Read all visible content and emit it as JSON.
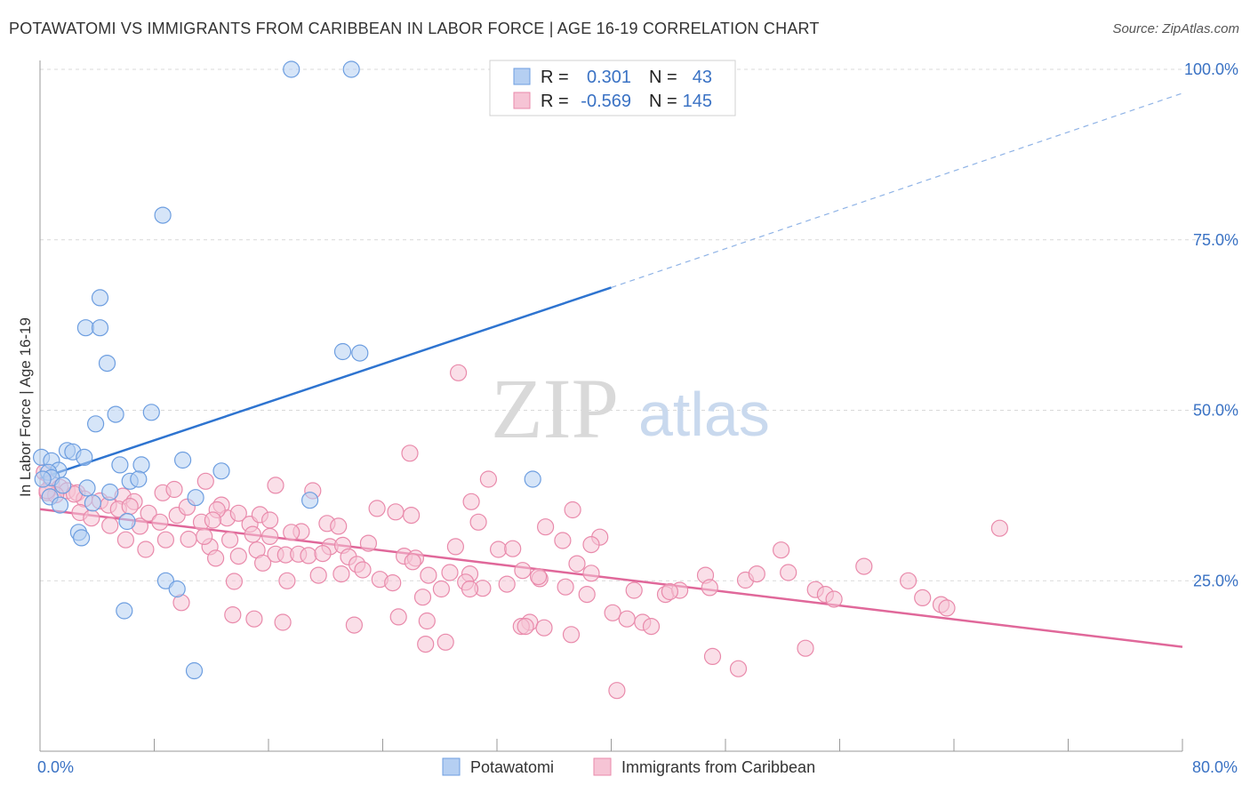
{
  "title": "POTAWATOMI VS IMMIGRANTS FROM CARIBBEAN IN LABOR FORCE | AGE 16-19 CORRELATION CHART",
  "source": "Source: ZipAtlas.com",
  "watermark": {
    "zip": "ZIP",
    "atlas": "atlas"
  },
  "colors": {
    "blue": "#6d9ee0",
    "blue_fill": "#b5cff2",
    "blue_line": "#2e74d0",
    "pink": "#e98aab",
    "pink_fill": "#f6c4d5",
    "pink_line": "#e0689a",
    "grid": "#d9d9d9",
    "axis_text": "#3a72c4"
  },
  "stats": {
    "r_label": "R =",
    "n_label": "N =",
    "rows": [
      {
        "series": "blue",
        "r": "0.301",
        "n": "43"
      },
      {
        "series": "pink",
        "r": "-0.569",
        "n": "145"
      }
    ]
  },
  "chart_data": {
    "type": "scatter",
    "title": "POTAWATOMI VS IMMIGRANTS FROM CARIBBEAN IN LABOR FORCE | AGE 16-19 CORRELATION CHART",
    "xlabel": "",
    "ylabel": "In Labor Force | Age 16-19",
    "xlim": [
      0,
      80
    ],
    "ylim": [
      0,
      100
    ],
    "x_tick_labels": [
      "0.0%",
      "80.0%"
    ],
    "y_ticks": [
      25,
      50,
      75,
      100
    ],
    "y_tick_labels": [
      "25.0%",
      "50.0%",
      "75.0%",
      "100.0%"
    ],
    "grid": true,
    "legend_position": "bottom",
    "series": [
      {
        "name": "Potawatomi",
        "color": "#6d9ee0",
        "r": 0.301,
        "n": 43,
        "trend": {
          "x0": 0,
          "y0": 40.0,
          "x1": 40,
          "y1": 68.0,
          "dashed_to_x": 80,
          "dashed_to_y": 96.5
        },
        "points": [
          [
            17.6,
            100
          ],
          [
            21.8,
            100
          ],
          [
            8.6,
            78.6
          ],
          [
            4.2,
            66.5
          ],
          [
            3.2,
            62.1
          ],
          [
            4.2,
            62.1
          ],
          [
            4.7,
            56.9
          ],
          [
            21.2,
            58.6
          ],
          [
            22.4,
            58.4
          ],
          [
            7.8,
            49.7
          ],
          [
            5.3,
            49.4
          ],
          [
            3.9,
            48.0
          ],
          [
            1.9,
            44.1
          ],
          [
            2.3,
            43.9
          ],
          [
            3.1,
            43.1
          ],
          [
            0.1,
            43.1
          ],
          [
            0.8,
            42.6
          ],
          [
            10.0,
            42.7
          ],
          [
            5.6,
            42.0
          ],
          [
            7.1,
            42.0
          ],
          [
            12.7,
            41.1
          ],
          [
            1.3,
            41.2
          ],
          [
            0.6,
            40.9
          ],
          [
            0.8,
            40.1
          ],
          [
            0.2,
            39.9
          ],
          [
            1.6,
            39.0
          ],
          [
            3.3,
            38.6
          ],
          [
            4.9,
            38.0
          ],
          [
            6.3,
            39.6
          ],
          [
            6.9,
            39.9
          ],
          [
            10.9,
            37.2
          ],
          [
            0.7,
            37.3
          ],
          [
            1.4,
            36.1
          ],
          [
            3.7,
            36.4
          ],
          [
            18.9,
            36.8
          ],
          [
            34.5,
            39.9
          ],
          [
            6.1,
            33.7
          ],
          [
            2.7,
            32.1
          ],
          [
            2.9,
            31.3
          ],
          [
            8.8,
            25.0
          ],
          [
            9.6,
            23.8
          ],
          [
            5.9,
            20.6
          ],
          [
            10.8,
            11.8
          ]
        ]
      },
      {
        "name": "Immigrants from Caribbean",
        "color": "#e98aab",
        "r": -0.569,
        "n": 145,
        "trend": {
          "x0": 0,
          "y0": 35.5,
          "x1": 80,
          "y1": 15.3
        },
        "points": [
          [
            29.3,
            55.5
          ],
          [
            25.9,
            43.7
          ],
          [
            31.4,
            39.9
          ],
          [
            0.3,
            40.9
          ],
          [
            0.8,
            39.3
          ],
          [
            1.4,
            38.7
          ],
          [
            1.9,
            38.2
          ],
          [
            0.5,
            37.9
          ],
          [
            1.1,
            37.6
          ],
          [
            2.6,
            37.9
          ],
          [
            3.1,
            37.0
          ],
          [
            4.2,
            36.7
          ],
          [
            4.8,
            36.1
          ],
          [
            5.8,
            37.4
          ],
          [
            6.6,
            36.6
          ],
          [
            8.6,
            37.9
          ],
          [
            9.4,
            38.4
          ],
          [
            11.6,
            39.6
          ],
          [
            12.7,
            36.1
          ],
          [
            13.1,
            34.2
          ],
          [
            16.5,
            39.0
          ],
          [
            19.1,
            38.2
          ],
          [
            2.8,
            35.0
          ],
          [
            3.6,
            34.2
          ],
          [
            4.9,
            33.1
          ],
          [
            5.5,
            35.5
          ],
          [
            6.3,
            35.9
          ],
          [
            7.0,
            33.0
          ],
          [
            7.6,
            34.9
          ],
          [
            8.4,
            33.6
          ],
          [
            9.6,
            34.6
          ],
          [
            10.3,
            35.8
          ],
          [
            11.3,
            33.6
          ],
          [
            12.4,
            35.4
          ],
          [
            13.9,
            34.9
          ],
          [
            14.7,
            33.3
          ],
          [
            15.4,
            34.7
          ],
          [
            16.1,
            33.9
          ],
          [
            18.3,
            32.2
          ],
          [
            20.1,
            33.4
          ],
          [
            20.9,
            33.0
          ],
          [
            23.6,
            35.6
          ],
          [
            24.9,
            35.1
          ],
          [
            26.0,
            34.6
          ],
          [
            30.2,
            36.6
          ],
          [
            30.7,
            33.6
          ],
          [
            35.4,
            32.9
          ],
          [
            37.3,
            35.4
          ],
          [
            6.0,
            31.0
          ],
          [
            7.4,
            29.6
          ],
          [
            8.8,
            31.0
          ],
          [
            10.4,
            31.1
          ],
          [
            11.9,
            30.0
          ],
          [
            12.3,
            28.3
          ],
          [
            13.3,
            31.0
          ],
          [
            13.9,
            28.6
          ],
          [
            15.2,
            29.5
          ],
          [
            15.6,
            27.6
          ],
          [
            16.5,
            28.9
          ],
          [
            17.2,
            28.8
          ],
          [
            17.3,
            25.0
          ],
          [
            17.6,
            32.1
          ],
          [
            18.1,
            28.9
          ],
          [
            18.8,
            28.7
          ],
          [
            19.5,
            25.8
          ],
          [
            20.3,
            30.0
          ],
          [
            21.2,
            30.2
          ],
          [
            21.6,
            28.5
          ],
          [
            22.2,
            27.4
          ],
          [
            22.6,
            26.6
          ],
          [
            23.0,
            30.5
          ],
          [
            23.8,
            25.2
          ],
          [
            25.5,
            28.6
          ],
          [
            26.3,
            28.3
          ],
          [
            27.2,
            25.8
          ],
          [
            28.7,
            26.2
          ],
          [
            29.1,
            30.0
          ],
          [
            30.1,
            26.0
          ],
          [
            32.1,
            29.6
          ],
          [
            33.1,
            29.7
          ],
          [
            33.8,
            26.5
          ],
          [
            35.0,
            25.3
          ],
          [
            36.6,
            30.9
          ],
          [
            37.6,
            27.5
          ],
          [
            39.2,
            31.4
          ],
          [
            38.6,
            26.1
          ],
          [
            41.6,
            23.6
          ],
          [
            43.8,
            23.0
          ],
          [
            46.6,
            25.8
          ],
          [
            49.4,
            25.1
          ],
          [
            50.2,
            26.0
          ],
          [
            51.9,
            29.5
          ],
          [
            52.4,
            26.2
          ],
          [
            54.3,
            23.7
          ],
          [
            55.0,
            23.0
          ],
          [
            57.7,
            27.1
          ],
          [
            60.8,
            25.0
          ],
          [
            61.8,
            22.5
          ],
          [
            63.1,
            21.5
          ],
          [
            67.2,
            32.7
          ],
          [
            26.8,
            22.6
          ],
          [
            28.1,
            23.8
          ],
          [
            29.8,
            24.8
          ],
          [
            31.0,
            23.9
          ],
          [
            32.7,
            24.5
          ],
          [
            34.9,
            25.6
          ],
          [
            36.8,
            24.1
          ],
          [
            38.3,
            23.0
          ],
          [
            40.1,
            20.3
          ],
          [
            41.1,
            19.4
          ],
          [
            42.2,
            18.9
          ],
          [
            42.8,
            18.3
          ],
          [
            44.8,
            23.6
          ],
          [
            46.9,
            24.0
          ],
          [
            13.5,
            20.0
          ],
          [
            17.0,
            18.9
          ],
          [
            22.0,
            18.5
          ],
          [
            25.1,
            19.7
          ],
          [
            27.1,
            19.1
          ],
          [
            34.3,
            18.9
          ],
          [
            35.3,
            18.1
          ],
          [
            37.2,
            17.1
          ],
          [
            27.0,
            15.7
          ],
          [
            28.4,
            16.0
          ],
          [
            33.7,
            18.3
          ],
          [
            34.0,
            18.3
          ],
          [
            47.1,
            13.9
          ],
          [
            48.9,
            12.1
          ],
          [
            53.6,
            15.1
          ],
          [
            40.4,
            8.9
          ],
          [
            9.9,
            21.8
          ],
          [
            15.0,
            19.4
          ],
          [
            24.7,
            24.7
          ],
          [
            13.6,
            24.9
          ],
          [
            16.1,
            31.5
          ],
          [
            26.1,
            27.8
          ],
          [
            44.1,
            23.4
          ],
          [
            21.1,
            26.0
          ],
          [
            19.8,
            29.0
          ],
          [
            38.6,
            30.3
          ],
          [
            14.9,
            31.8
          ],
          [
            12.1,
            33.9
          ],
          [
            11.5,
            31.5
          ],
          [
            30.1,
            23.8
          ],
          [
            55.6,
            22.3
          ],
          [
            63.5,
            21.0
          ],
          [
            0.5,
            38.2
          ],
          [
            2.4,
            37.7
          ]
        ]
      }
    ]
  },
  "legend": {
    "items": [
      "Potawatomi",
      "Immigrants from Caribbean"
    ]
  }
}
